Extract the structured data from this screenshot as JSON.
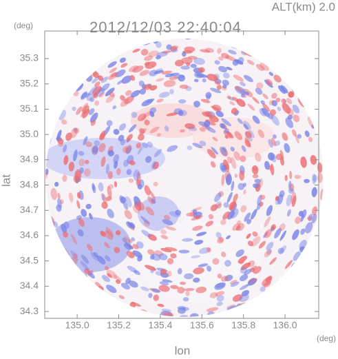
{
  "chart_data": {
    "type": "radar-map",
    "title": "2012/12/03 22:40:04",
    "subtitle": "ALT(km) 2.0",
    "x_label": "lon",
    "y_label": "lat",
    "x_unit": "(deg)",
    "y_unit": "(deg)",
    "xlim": [
      134.844,
      136.162
    ],
    "ylim": [
      34.273,
      35.409
    ],
    "xticks": [
      {
        "value": 135,
        "label": "135.0"
      },
      135.2,
      135.4,
      135.6,
      135.8,
      {
        "value": 136,
        "label": "136.0"
      }
    ],
    "yticks": [
      34.3,
      34.4,
      34.5,
      34.6,
      34.7,
      34.8,
      34.9,
      {
        "value": 35,
        "label": "35.0"
      },
      35.1,
      35.2,
      35.3
    ]
  }
}
